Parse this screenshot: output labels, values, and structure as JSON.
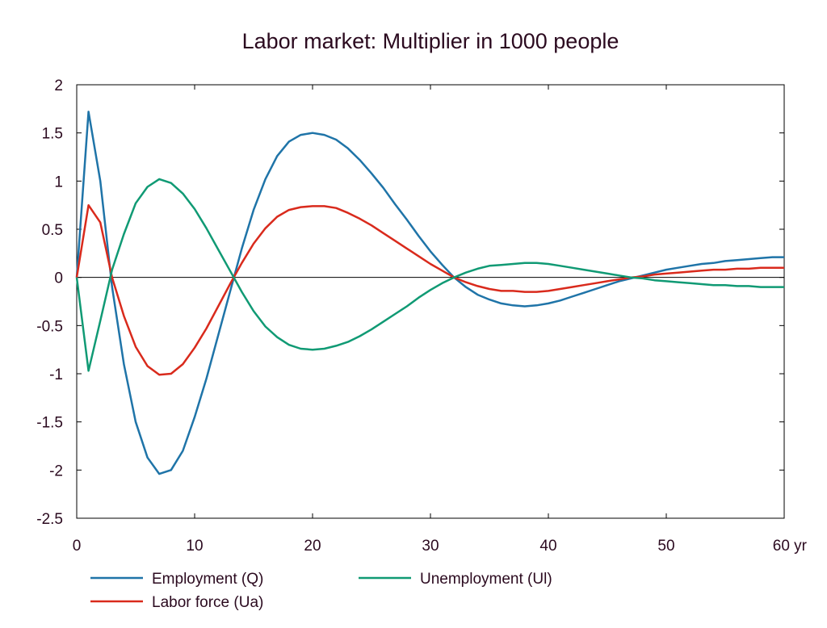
{
  "chart_data": {
    "type": "line",
    "title": "Labor market: Multiplier in 1000 people",
    "xlabel": "",
    "ylabel": "",
    "x_unit": "yr",
    "xlim": [
      0,
      60
    ],
    "ylim": [
      -2.5,
      2
    ],
    "x_ticks": [
      0,
      10,
      20,
      30,
      40,
      50,
      60
    ],
    "x_tick_labels": [
      "0",
      "10",
      "20",
      "30",
      "40",
      "50",
      "60 yr"
    ],
    "y_ticks": [
      2,
      1.5,
      1,
      0.5,
      0,
      -0.5,
      -1,
      -1.5,
      -2,
      -2.5
    ],
    "y_tick_labels": [
      "2",
      "1.5",
      "1",
      "0.5",
      "0",
      "-0.5",
      "-1",
      "-1.5",
      "-2",
      "-2.5"
    ],
    "grid": false,
    "zero_line": true,
    "legend_position": "bottom",
    "series": [
      {
        "name": "Employment (Q)",
        "color": "#1f74a8",
        "x": [
          0,
          1,
          2,
          3,
          4,
          5,
          6,
          7,
          8,
          9,
          10,
          11,
          12,
          13,
          14,
          15,
          16,
          17,
          18,
          19,
          20,
          21,
          22,
          23,
          24,
          25,
          26,
          27,
          28,
          29,
          30,
          31,
          32,
          33,
          34,
          35,
          36,
          37,
          38,
          39,
          40,
          41,
          42,
          43,
          44,
          45,
          46,
          47,
          48,
          49,
          50,
          51,
          52,
          53,
          54,
          55,
          56,
          57,
          58,
          59,
          60
        ],
        "y": [
          0,
          1.72,
          1.0,
          -0.1,
          -0.9,
          -1.5,
          -1.87,
          -2.04,
          -2.0,
          -1.8,
          -1.45,
          -1.05,
          -0.6,
          -0.15,
          0.3,
          0.7,
          1.02,
          1.26,
          1.41,
          1.48,
          1.5,
          1.48,
          1.43,
          1.34,
          1.22,
          1.08,
          0.93,
          0.76,
          0.6,
          0.43,
          0.27,
          0.13,
          0.0,
          -0.1,
          -0.18,
          -0.23,
          -0.27,
          -0.29,
          -0.3,
          -0.29,
          -0.27,
          -0.24,
          -0.2,
          -0.16,
          -0.12,
          -0.08,
          -0.04,
          -0.01,
          0.02,
          0.05,
          0.08,
          0.1,
          0.12,
          0.14,
          0.15,
          0.17,
          0.18,
          0.19,
          0.2,
          0.21,
          0.21
        ]
      },
      {
        "name": "Labor force (Ua)",
        "color": "#d92a1c",
        "x": [
          0,
          1,
          2,
          3,
          4,
          5,
          6,
          7,
          8,
          9,
          10,
          11,
          12,
          13,
          14,
          15,
          16,
          17,
          18,
          19,
          20,
          21,
          22,
          23,
          24,
          25,
          26,
          27,
          28,
          29,
          30,
          31,
          32,
          33,
          34,
          35,
          36,
          37,
          38,
          39,
          40,
          41,
          42,
          43,
          44,
          45,
          46,
          47,
          48,
          49,
          50,
          51,
          52,
          53,
          54,
          55,
          56,
          57,
          58,
          59,
          60
        ],
        "y": [
          0,
          0.75,
          0.57,
          0.0,
          -0.4,
          -0.72,
          -0.92,
          -1.01,
          -1.0,
          -0.9,
          -0.73,
          -0.53,
          -0.3,
          -0.07,
          0.15,
          0.35,
          0.51,
          0.63,
          0.7,
          0.73,
          0.74,
          0.74,
          0.72,
          0.67,
          0.61,
          0.54,
          0.46,
          0.38,
          0.3,
          0.22,
          0.14,
          0.07,
          0.0,
          -0.05,
          -0.09,
          -0.12,
          -0.14,
          -0.14,
          -0.15,
          -0.15,
          -0.14,
          -0.12,
          -0.1,
          -0.08,
          -0.06,
          -0.04,
          -0.02,
          0.0,
          0.01,
          0.03,
          0.04,
          0.05,
          0.06,
          0.07,
          0.08,
          0.08,
          0.09,
          0.09,
          0.1,
          0.1,
          0.1
        ]
      },
      {
        "name": "Unemployment (Ul)",
        "color": "#109a74",
        "x": [
          0,
          1,
          2,
          3,
          4,
          5,
          6,
          7,
          8,
          9,
          10,
          11,
          12,
          13,
          14,
          15,
          16,
          17,
          18,
          19,
          20,
          21,
          22,
          23,
          24,
          25,
          26,
          27,
          28,
          29,
          30,
          31,
          32,
          33,
          34,
          35,
          36,
          37,
          38,
          39,
          40,
          41,
          42,
          43,
          44,
          45,
          46,
          47,
          48,
          49,
          50,
          51,
          52,
          53,
          54,
          55,
          56,
          57,
          58,
          59,
          60
        ],
        "y": [
          0,
          -0.97,
          -0.45,
          0.08,
          0.45,
          0.77,
          0.94,
          1.02,
          0.98,
          0.87,
          0.71,
          0.51,
          0.29,
          0.07,
          -0.15,
          -0.35,
          -0.51,
          -0.62,
          -0.7,
          -0.74,
          -0.75,
          -0.74,
          -0.71,
          -0.67,
          -0.61,
          -0.54,
          -0.46,
          -0.38,
          -0.3,
          -0.21,
          -0.13,
          -0.06,
          0.0,
          0.05,
          0.09,
          0.12,
          0.13,
          0.14,
          0.15,
          0.15,
          0.14,
          0.12,
          0.1,
          0.08,
          0.06,
          0.04,
          0.02,
          0.0,
          -0.01,
          -0.03,
          -0.04,
          -0.05,
          -0.06,
          -0.07,
          -0.08,
          -0.08,
          -0.09,
          -0.09,
          -0.1,
          -0.1,
          -0.1
        ]
      }
    ]
  }
}
